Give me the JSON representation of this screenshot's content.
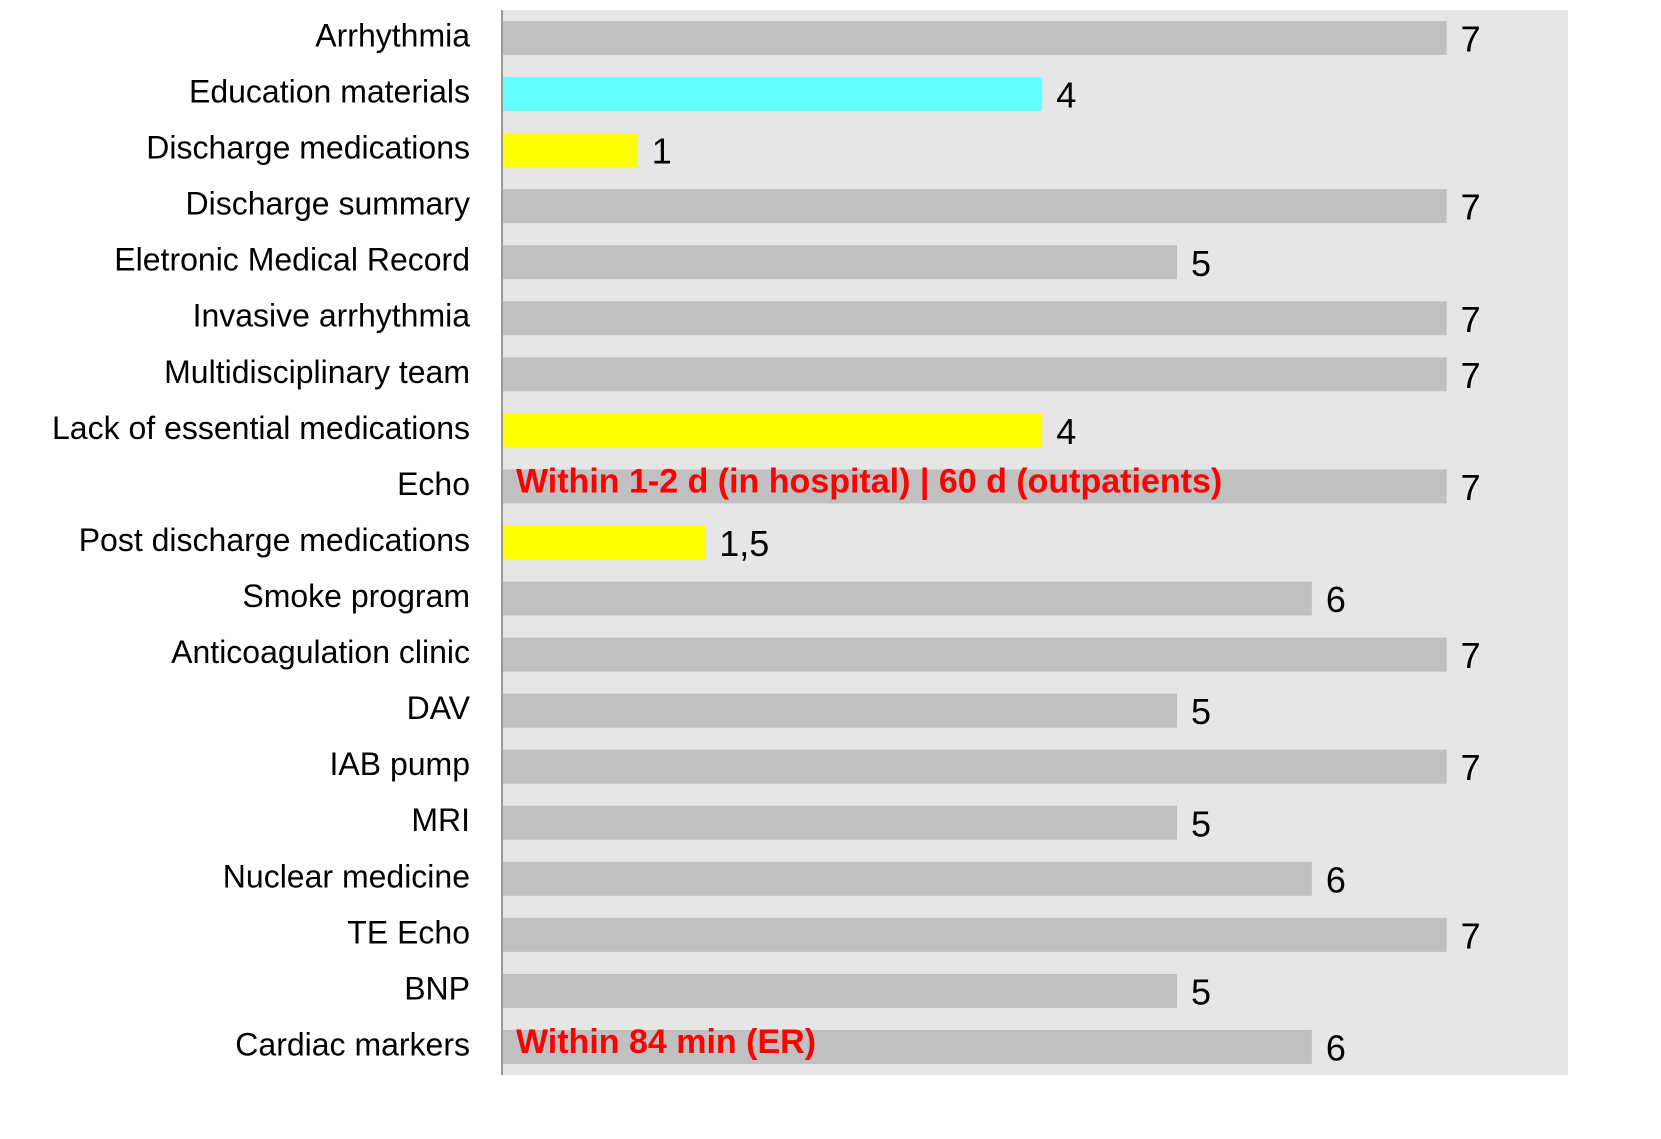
{
  "chart_data": {
    "type": "bar",
    "orientation": "horizontal",
    "categories": [
      "Arrhythmia",
      "Education materials",
      "Discharge medications",
      "Discharge summary",
      "Eletronic Medical Record",
      "Invasive arrhythmia",
      "Multidisciplinary team",
      "Lack of essential medications",
      "Echo",
      "Post discharge medications",
      "Smoke program",
      "Anticoagulation clinic",
      "DAV",
      "IAB pump",
      "MRI",
      "Nuclear medicine",
      "TE Echo",
      "BNP",
      "Cardiac markers"
    ],
    "values": [
      7,
      4,
      1,
      7,
      5,
      7,
      7,
      4,
      7,
      1.5,
      6,
      7,
      5,
      7,
      5,
      6,
      7,
      5,
      6
    ],
    "value_labels": [
      "7",
      "4",
      "1",
      "7",
      "5",
      "7",
      "7",
      "4",
      "7",
      "1,5",
      "6",
      "7",
      "5",
      "7",
      "5",
      "6",
      "7",
      "5",
      "6"
    ],
    "colors": [
      "#c0c0c0",
      "#66ffff",
      "#ffff00",
      "#c0c0c0",
      "#c0c0c0",
      "#c0c0c0",
      "#c0c0c0",
      "#ffff00",
      "#c0c0c0",
      "#ffff00",
      "#c0c0c0",
      "#c0c0c0",
      "#c0c0c0",
      "#c0c0c0",
      "#c0c0c0",
      "#c0c0c0",
      "#c0c0c0",
      "#c0c0c0",
      "#c0c0c0"
    ],
    "xlim": [
      0,
      7.9
    ],
    "annotations": [
      {
        "text": "Within 1-2 d (in hospital) | 60 d (outpatients)",
        "category": "Echo",
        "color": "#ff0000"
      },
      {
        "text": "Within 84 min (ER)",
        "category": "Cardiac markers",
        "color": "#ff0000"
      }
    ]
  }
}
